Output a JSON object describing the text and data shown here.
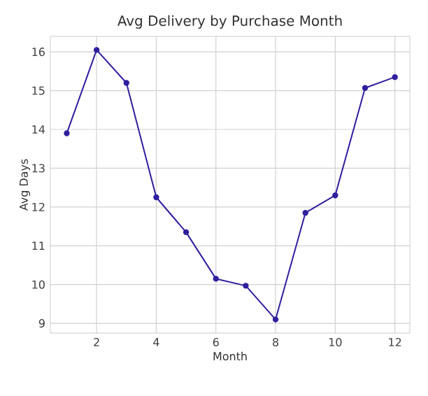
{
  "chart_data": {
    "type": "line",
    "title": "Avg Delivery by Purchase Month",
    "xlabel": "Month",
    "ylabel": "Avg Days",
    "x": [
      1,
      2,
      3,
      4,
      5,
      6,
      7,
      8,
      9,
      10,
      11,
      12
    ],
    "series": [
      {
        "color": "#2e1f9e",
        "values": [
          13.9,
          16.05,
          15.2,
          12.25,
          11.35,
          10.15,
          9.97,
          9.1,
          11.85,
          12.3,
          15.07,
          15.35
        ]
      }
    ],
    "xlim": [
      0.45,
      12.5
    ],
    "ylim": [
      8.75,
      16.4
    ],
    "xticks": [
      2,
      4,
      6,
      8,
      10,
      12
    ],
    "yticks": [
      9,
      10,
      11,
      12,
      13,
      14,
      15,
      16
    ],
    "grid": true,
    "marker": "circle",
    "line_style": "solid"
  }
}
